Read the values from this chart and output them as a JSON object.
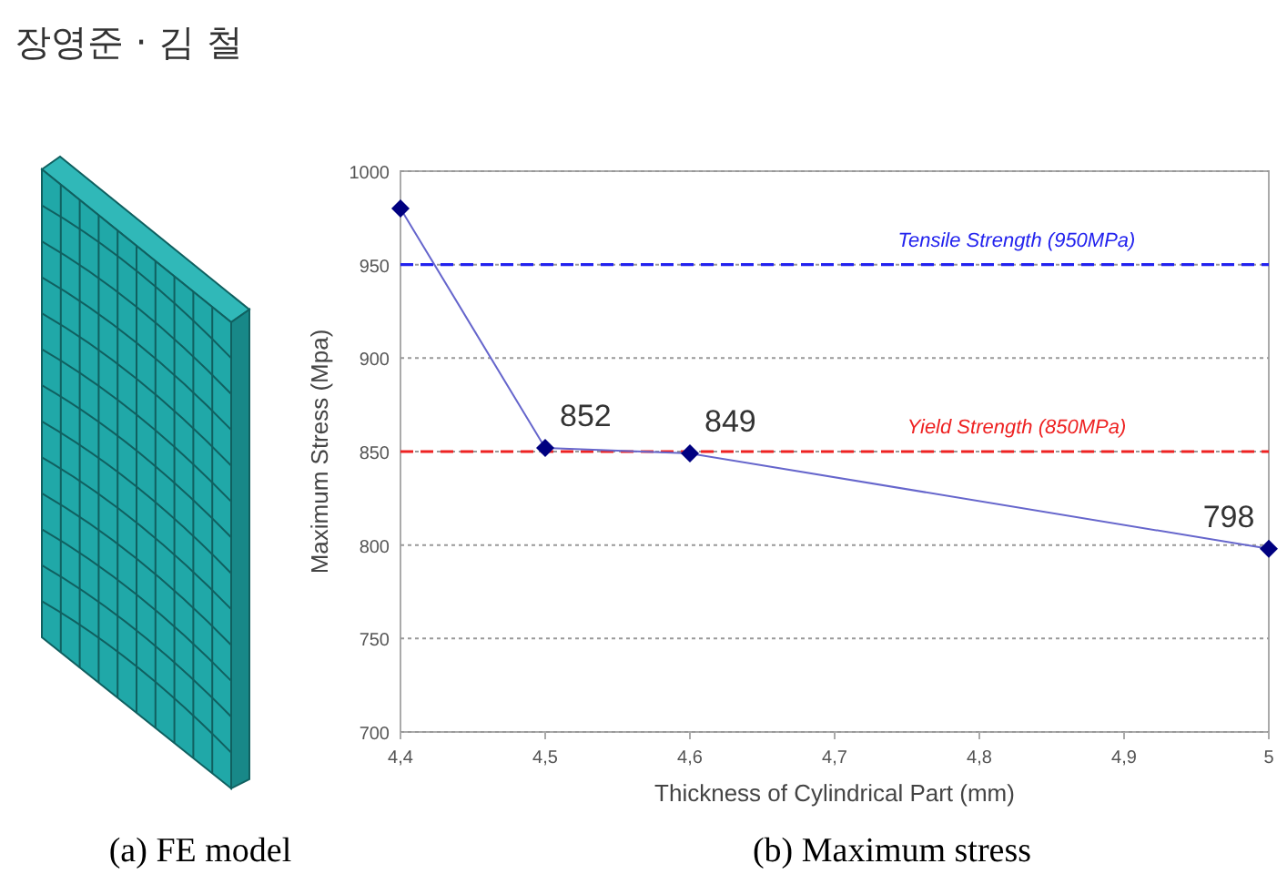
{
  "chart_data": {
    "type": "line",
    "annotations": [
      "장영준 · 김 철",
      "(a) FE model",
      "(b) Maximum stress"
    ],
    "xlabel": "Thickness of Cylindrical Part (mm)",
    "ylabel": "Maximum Stress (Mpa)",
    "x": [
      4.4,
      4.5,
      4.6,
      5
    ],
    "series": [
      {
        "color": "#6666cc",
        "values": [
          980,
          852,
          849,
          798
        ],
        "value_labels": [
          null,
          "852",
          "849",
          "798"
        ]
      }
    ],
    "marker": "diamond",
    "line_style": "solid",
    "grid": "y",
    "xlim": [
      4.4,
      5
    ],
    "ylim": [
      700,
      1000
    ],
    "xticks": [
      {
        "value": 4.4,
        "label": "4,4"
      },
      {
        "value": 4.5,
        "label": "4,5"
      },
      {
        "value": 4.6,
        "label": "4,6"
      },
      {
        "value": 4.7,
        "label": "4,7"
      },
      {
        "value": 4.8,
        "label": "4,8"
      },
      {
        "value": 4.9,
        "label": "4,9"
      },
      5
    ],
    "yticks": [
      700,
      750,
      800,
      850,
      900,
      950,
      1000
    ],
    "ref_lines": [
      {
        "axis": "y",
        "value": 950,
        "label": "Tensile Strength (950MPa)",
        "color": "#2222ee",
        "line_style": "dashed"
      },
      {
        "axis": "y",
        "value": 850,
        "label": "Yield Strength (850MPa)",
        "color": "#ee2222",
        "line_style": "dashed"
      }
    ]
  }
}
